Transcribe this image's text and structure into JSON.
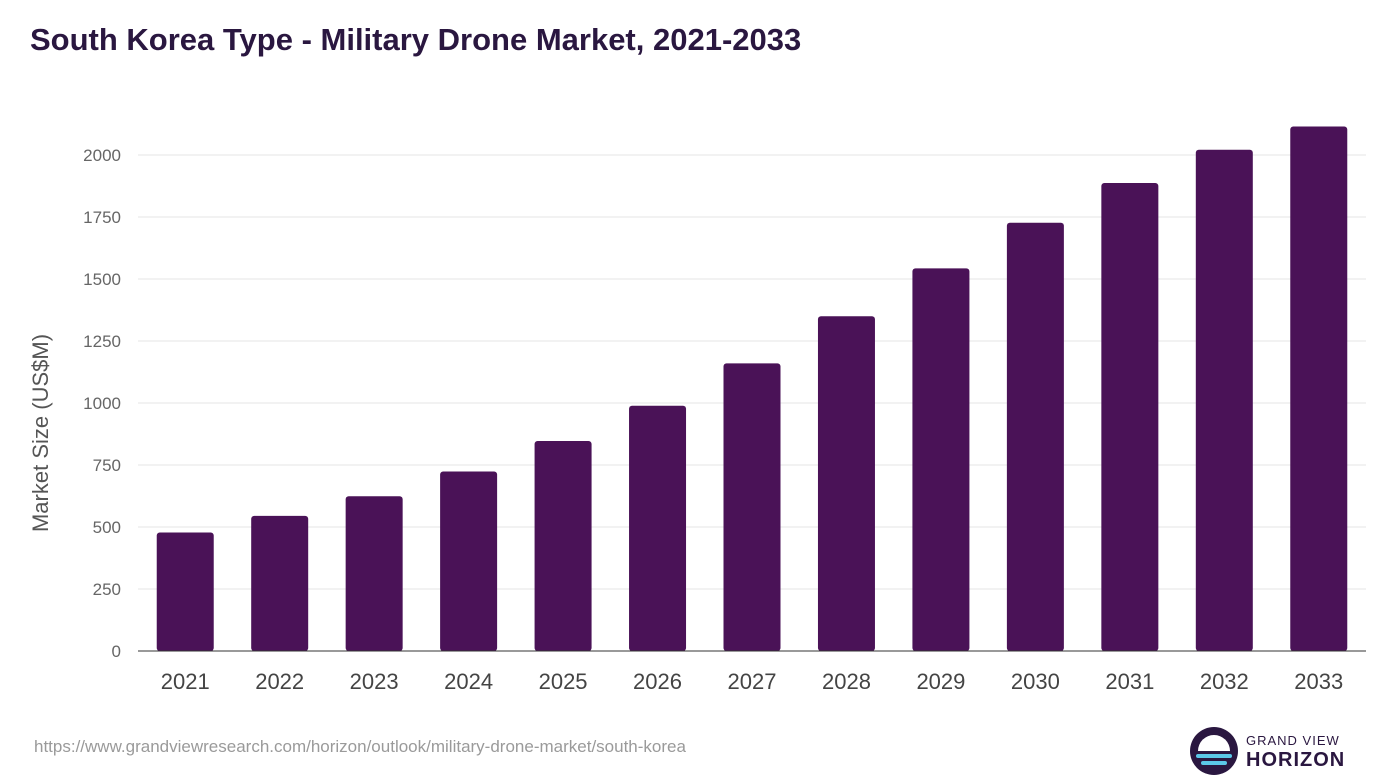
{
  "chart_data": {
    "type": "bar",
    "title": "South Korea Type - Military Drone Market, 2021-2033",
    "ylabel": "Market Size (US$M)",
    "xlabel": "",
    "categories": [
      "2021",
      "2022",
      "2023",
      "2024",
      "2025",
      "2026",
      "2027",
      "2028",
      "2029",
      "2030",
      "2031",
      "2032",
      "2033"
    ],
    "values": [
      478,
      545,
      624,
      724,
      847,
      989,
      1160,
      1350,
      1543,
      1727,
      1887,
      2021,
      2115
    ],
    "ylim": [
      0,
      2000
    ],
    "yticks": [
      0,
      250,
      500,
      750,
      1000,
      1250,
      1500,
      1750,
      2000
    ],
    "grid": true,
    "legend": "none",
    "bar_color": "#4a1257"
  },
  "footer": {
    "source_url": "https://www.grandviewresearch.com/horizon/outlook/military-drone-market/south-korea",
    "logo_top": "GRAND VIEW",
    "logo_bottom": "HORIZON"
  },
  "colors": {
    "title": "#2a1740",
    "bar": "#4a1257",
    "grid": "#e6e6e6",
    "logo_circle": "#2a1740",
    "logo_accent": "#5bc8e8"
  },
  "icons": {
    "logo": "horizon-sunrise-icon"
  }
}
